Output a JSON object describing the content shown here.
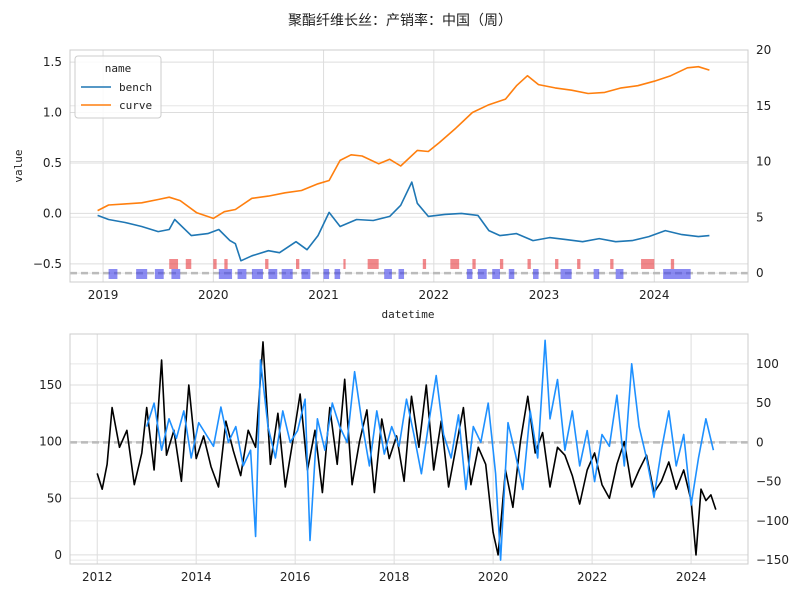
{
  "title": "聚酯纤维长丝：产销率：中国（周）",
  "chart_data": [
    {
      "type": "line",
      "xlabel": "datetime",
      "ylabel": "value",
      "legend": {
        "title": "name",
        "position": "top-left"
      },
      "x_ticks": [
        "2019",
        "2020",
        "2021",
        "2022",
        "2023",
        "2024"
      ],
      "x_range": [
        2018.7,
        2024.85
      ],
      "y_left_ticks": [
        "−0.5",
        "0.0",
        "0.5",
        "1.0",
        "1.5"
      ],
      "y_left_range": [
        -0.68,
        1.62
      ],
      "y_right_ticks": [
        "0",
        "5",
        "10",
        "15",
        "20"
      ],
      "y_right_range": [
        -0.8,
        20
      ],
      "grid": true,
      "colors": {
        "bench": "#1f77b4",
        "curve": "#ff7f0e",
        "red_band": "#e8383d",
        "blue_band": "#3d3dea",
        "dash": "#bbbbbb"
      },
      "series": [
        {
          "name": "bench",
          "axis": "left",
          "x": [
            2018.95,
            2019.05,
            2019.2,
            2019.35,
            2019.5,
            2019.6,
            2019.65,
            2019.8,
            2019.95,
            2020.05,
            2020.15,
            2020.2,
            2020.25,
            2020.35,
            2020.5,
            2020.6,
            2020.75,
            2020.85,
            2020.95,
            2021.05,
            2021.15,
            2021.3,
            2021.45,
            2021.6,
            2021.7,
            2021.8,
            2021.85,
            2021.95,
            2022.1,
            2022.25,
            2022.4,
            2022.5,
            2022.6,
            2022.75,
            2022.9,
            2023.05,
            2023.2,
            2023.35,
            2023.5,
            2023.65,
            2023.8,
            2023.95,
            2024.1,
            2024.25,
            2024.4,
            2024.5
          ],
          "y": [
            -0.02,
            -0.06,
            -0.09,
            -0.13,
            -0.18,
            -0.16,
            -0.06,
            -0.22,
            -0.2,
            -0.16,
            -0.27,
            -0.3,
            -0.47,
            -0.42,
            -0.37,
            -0.39,
            -0.28,
            -0.36,
            -0.22,
            0.01,
            -0.13,
            -0.06,
            -0.07,
            -0.03,
            0.08,
            0.31,
            0.1,
            -0.03,
            -0.01,
            0.0,
            -0.02,
            -0.17,
            -0.22,
            -0.2,
            -0.27,
            -0.24,
            -0.26,
            -0.28,
            -0.25,
            -0.28,
            -0.27,
            -0.23,
            -0.17,
            -0.21,
            -0.23,
            -0.22
          ]
        },
        {
          "name": "curve",
          "axis": "right",
          "x": [
            2018.95,
            2019.05,
            2019.2,
            2019.35,
            2019.5,
            2019.6,
            2019.7,
            2019.85,
            2020.0,
            2020.1,
            2020.2,
            2020.35,
            2020.5,
            2020.65,
            2020.8,
            2020.95,
            2021.05,
            2021.15,
            2021.25,
            2021.35,
            2021.5,
            2021.6,
            2021.7,
            2021.85,
            2021.95,
            2022.05,
            2022.2,
            2022.35,
            2022.5,
            2022.65,
            2022.75,
            2022.85,
            2022.95,
            2023.1,
            2023.25,
            2023.4,
            2023.55,
            2023.7,
            2023.85,
            2024.0,
            2024.15,
            2024.3,
            2024.4,
            2024.5
          ],
          "y": [
            5.6,
            6.1,
            6.2,
            6.3,
            6.6,
            6.8,
            6.5,
            5.4,
            4.9,
            5.5,
            5.7,
            6.7,
            6.9,
            7.2,
            7.4,
            8.0,
            8.3,
            10.1,
            10.6,
            10.5,
            9.8,
            10.2,
            9.6,
            11.0,
            10.9,
            11.7,
            13.0,
            14.4,
            15.1,
            15.6,
            16.8,
            17.7,
            16.9,
            16.6,
            16.4,
            16.1,
            16.2,
            16.6,
            16.8,
            17.2,
            17.7,
            18.4,
            18.5,
            18.2
          ]
        }
      ],
      "signal_bands": [
        {
          "color": "red",
          "row": "upper",
          "intervals": [
            [
              2019.6,
              2019.68
            ],
            [
              2019.75,
              2019.8
            ],
            [
              2020.0,
              2020.03
            ],
            [
              2020.1,
              2020.13
            ],
            [
              2020.47,
              2020.5
            ],
            [
              2020.75,
              2020.78
            ],
            [
              2021.18,
              2021.2
            ],
            [
              2021.4,
              2021.5
            ],
            [
              2021.9,
              2021.93
            ],
            [
              2022.15,
              2022.23
            ],
            [
              2022.35,
              2022.38
            ],
            [
              2022.6,
              2022.63
            ],
            [
              2022.85,
              2022.88
            ],
            [
              2023.1,
              2023.13
            ],
            [
              2023.3,
              2023.33
            ],
            [
              2023.6,
              2023.63
            ],
            [
              2023.88,
              2024.0
            ],
            [
              2024.15,
              2024.18
            ]
          ]
        },
        {
          "color": "blue",
          "row": "lower",
          "intervals": [
            [
              2019.05,
              2019.13
            ],
            [
              2019.3,
              2019.4
            ],
            [
              2019.47,
              2019.55
            ],
            [
              2019.62,
              2019.7
            ],
            [
              2020.05,
              2020.17
            ],
            [
              2020.22,
              2020.3
            ],
            [
              2020.35,
              2020.45
            ],
            [
              2020.5,
              2020.58
            ],
            [
              2020.62,
              2020.72
            ],
            [
              2020.8,
              2020.88
            ],
            [
              2021.0,
              2021.05
            ],
            [
              2021.1,
              2021.15
            ],
            [
              2021.55,
              2021.62
            ],
            [
              2021.68,
              2021.73
            ],
            [
              2022.3,
              2022.35
            ],
            [
              2022.4,
              2022.48
            ],
            [
              2022.53,
              2022.6
            ],
            [
              2022.68,
              2022.73
            ],
            [
              2022.9,
              2022.95
            ],
            [
              2023.15,
              2023.25
            ],
            [
              2023.45,
              2023.5
            ],
            [
              2023.65,
              2023.72
            ],
            [
              2024.08,
              2024.33
            ]
          ]
        }
      ]
    },
    {
      "type": "line",
      "xlabel": "",
      "ylabel": "",
      "x_ticks": [
        "2012",
        "2014",
        "2016",
        "2018",
        "2020",
        "2022",
        "2024"
      ],
      "x_range": [
        2011.45,
        2025.15
      ],
      "y_left_ticks": [
        "0",
        "50",
        "100",
        "150"
      ],
      "y_left_range": [
        -8,
        195
      ],
      "y_right_ticks": [
        "−150",
        "−100",
        "−50",
        "0",
        "50",
        "100"
      ],
      "y_right_range": [
        -155,
        138
      ],
      "grid": true,
      "colors": {
        "left": "#000000",
        "right": "#1e90ff",
        "dash": "#bbbbbb"
      },
      "series": [
        {
          "name": "",
          "axis": "left",
          "x": [
            2012.0,
            2012.1,
            2012.2,
            2012.3,
            2012.45,
            2012.6,
            2012.75,
            2012.9,
            2013.0,
            2013.15,
            2013.3,
            2013.4,
            2013.55,
            2013.7,
            2013.85,
            2014.0,
            2014.15,
            2014.3,
            2014.45,
            2014.6,
            2014.75,
            2014.9,
            2015.05,
            2015.2,
            2015.35,
            2015.5,
            2015.65,
            2015.8,
            2015.95,
            2016.1,
            2016.25,
            2016.4,
            2016.55,
            2016.7,
            2016.85,
            2017.0,
            2017.15,
            2017.3,
            2017.45,
            2017.6,
            2017.75,
            2017.9,
            2018.05,
            2018.2,
            2018.35,
            2018.5,
            2018.65,
            2018.8,
            2018.95,
            2019.1,
            2019.25,
            2019.4,
            2019.55,
            2019.7,
            2019.85,
            2020.0,
            2020.1,
            2020.25,
            2020.4,
            2020.55,
            2020.7,
            2020.85,
            2021.0,
            2021.15,
            2021.3,
            2021.45,
            2021.6,
            2021.75,
            2021.9,
            2022.05,
            2022.2,
            2022.35,
            2022.5,
            2022.65,
            2022.8,
            2022.95,
            2023.1,
            2023.25,
            2023.4,
            2023.55,
            2023.7,
            2023.85,
            2024.0,
            2024.1,
            2024.2,
            2024.3,
            2024.4,
            2024.5
          ],
          "y": [
            72,
            58,
            80,
            130,
            95,
            110,
            62,
            90,
            130,
            75,
            172,
            88,
            110,
            65,
            150,
            85,
            105,
            78,
            60,
            118,
            92,
            70,
            110,
            95,
            188,
            80,
            125,
            60,
            100,
            142,
            75,
            110,
            55,
            130,
            80,
            155,
            62,
            100,
            128,
            55,
            120,
            85,
            105,
            65,
            140,
            95,
            150,
            75,
            118,
            60,
            95,
            130,
            62,
            95,
            80,
            20,
            0,
            75,
            42,
            100,
            140,
            90,
            108,
            60,
            95,
            88,
            70,
            45,
            75,
            90,
            62,
            50,
            80,
            100,
            60,
            75,
            88,
            55,
            65,
            82,
            58,
            75,
            48,
            0,
            58,
            48,
            53,
            40
          ]
        },
        {
          "name": "",
          "axis": "right",
          "x": [
            2013.0,
            2013.15,
            2013.3,
            2013.45,
            2013.6,
            2013.75,
            2013.9,
            2014.05,
            2014.2,
            2014.35,
            2014.5,
            2014.65,
            2014.8,
            2014.95,
            2015.1,
            2015.2,
            2015.3,
            2015.45,
            2015.6,
            2015.75,
            2015.9,
            2016.05,
            2016.2,
            2016.3,
            2016.45,
            2016.6,
            2016.75,
            2016.9,
            2017.05,
            2017.2,
            2017.35,
            2017.5,
            2017.65,
            2017.8,
            2017.95,
            2018.1,
            2018.25,
            2018.4,
            2018.55,
            2018.7,
            2018.85,
            2019.0,
            2019.15,
            2019.3,
            2019.45,
            2019.6,
            2019.75,
            2019.9,
            2020.05,
            2020.15,
            2020.3,
            2020.45,
            2020.6,
            2020.75,
            2020.9,
            2021.05,
            2021.15,
            2021.3,
            2021.45,
            2021.6,
            2021.75,
            2021.9,
            2022.05,
            2022.2,
            2022.35,
            2022.5,
            2022.65,
            2022.8,
            2022.95,
            2023.1,
            2023.25,
            2023.4,
            2023.55,
            2023.7,
            2023.85,
            2024.0,
            2024.15,
            2024.3,
            2024.45
          ],
          "y": [
            20,
            50,
            -10,
            30,
            5,
            40,
            -20,
            25,
            10,
            -5,
            45,
            0,
            20,
            -30,
            -10,
            -120,
            105,
            20,
            -20,
            40,
            0,
            15,
            55,
            -125,
            30,
            -10,
            50,
            20,
            0,
            90,
            25,
            -30,
            40,
            -15,
            20,
            -5,
            55,
            10,
            -40,
            25,
            85,
            10,
            -20,
            35,
            -60,
            20,
            0,
            50,
            -40,
            -150,
            25,
            -15,
            -60,
            40,
            -20,
            130,
            30,
            80,
            -10,
            40,
            -30,
            15,
            -50,
            10,
            -5,
            60,
            -30,
            100,
            20,
            -20,
            -70,
            -10,
            40,
            -30,
            10,
            -80,
            -20,
            30,
            -10
          ]
        }
      ]
    }
  ]
}
